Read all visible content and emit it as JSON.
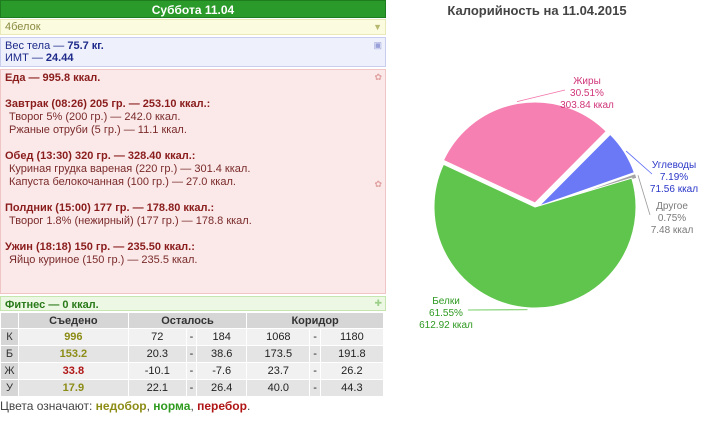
{
  "day": {
    "title": "Суббота 11.04"
  },
  "protein_strip": {
    "text": "4белок"
  },
  "body": {
    "weight_prefix": "Вес тела — ",
    "weight_value": "75.7 кг.",
    "bmi_prefix": "ИМТ — ",
    "bmi_value": "24.44"
  },
  "food": {
    "total": "Еда — 995.8 ккал.",
    "meals": [
      {
        "title": "Завтрак (08:26) 205 гр. — 253.10 ккал.:",
        "items": [
          "Творог 5% (200 гр.) — 242.0 ккал.",
          "Ржаные отруби (5 гр.) — 11.1 ккал."
        ]
      },
      {
        "title": "Обед (13:30) 320 гр. — 328.40 ккал.:",
        "items": [
          "Куриная грудка вареная (220 гр.) — 301.4 ккал.",
          "Капуста белокочанная (100 гр.) — 27.0 ккал."
        ]
      },
      {
        "title": "Полдник (15:00) 177 гр. — 178.80 ккал.:",
        "items": [
          "Творог 1.8% (нежирный) (177 гр.) — 178.8 ккал."
        ]
      },
      {
        "title": "Ужин (18:18) 150 гр. — 235.50 ккал.:",
        "items": [
          "Яйцо куриное (150 гр.) — 235.5 ккал."
        ]
      }
    ]
  },
  "fitness": {
    "text": "Фитнес — 0 ккал."
  },
  "nutrition_table": {
    "headers": [
      "Съедено",
      "Осталось",
      "Коридор"
    ],
    "rows": [
      {
        "label": "К",
        "eaten": "996",
        "eaten_color": "#8c8c16",
        "left_min": "72",
        "left_max": "184",
        "range_min": "1068",
        "range_max": "1180"
      },
      {
        "label": "Б",
        "eaten": "153.2",
        "eaten_color": "#8c8c16",
        "left_min": "20.3",
        "left_max": "38.6",
        "range_min": "173.5",
        "range_max": "191.8"
      },
      {
        "label": "Ж",
        "eaten": "33.8",
        "eaten_color": "#b01515",
        "left_min": "-10.1",
        "left_max": "-7.6",
        "range_min": "23.7",
        "range_max": "26.2"
      },
      {
        "label": "У",
        "eaten": "17.9",
        "eaten_color": "#8c8c16",
        "left_min": "22.1",
        "left_max": "26.4",
        "range_min": "40.0",
        "range_max": "44.3"
      }
    ],
    "dash": "-"
  },
  "color_legend": {
    "prefix": "Цвета означают: ",
    "under": "недобор",
    "sep1": ", ",
    "norm": "норма",
    "sep2": ", ",
    "over": "перебор",
    "end": "."
  },
  "chart_data": {
    "type": "pie",
    "title": "Калорийность на 11.04.2015",
    "slices": [
      {
        "name": "Жиры",
        "percent": "30.51%",
        "value_label": "303.84 ккал",
        "value": 303.84,
        "color": "#f472a8",
        "label_color": "#d0357a"
      },
      {
        "name": "Углеводы",
        "percent": "7.19%",
        "value_label": "71.56 ккал",
        "value": 71.56,
        "color": "#5b6af5",
        "label_color": "#2a36c8"
      },
      {
        "name": "Другое",
        "percent": "0.75%",
        "value_label": "7.48 ккал",
        "value": 7.48,
        "color": "#9a9a9a",
        "label_color": "#7a7a7a"
      },
      {
        "name": "Белки",
        "percent": "61.55%",
        "value_label": "612.92 ккал",
        "value": 612.92,
        "color": "#4fbf3a",
        "label_color": "#2f9a22"
      }
    ]
  }
}
